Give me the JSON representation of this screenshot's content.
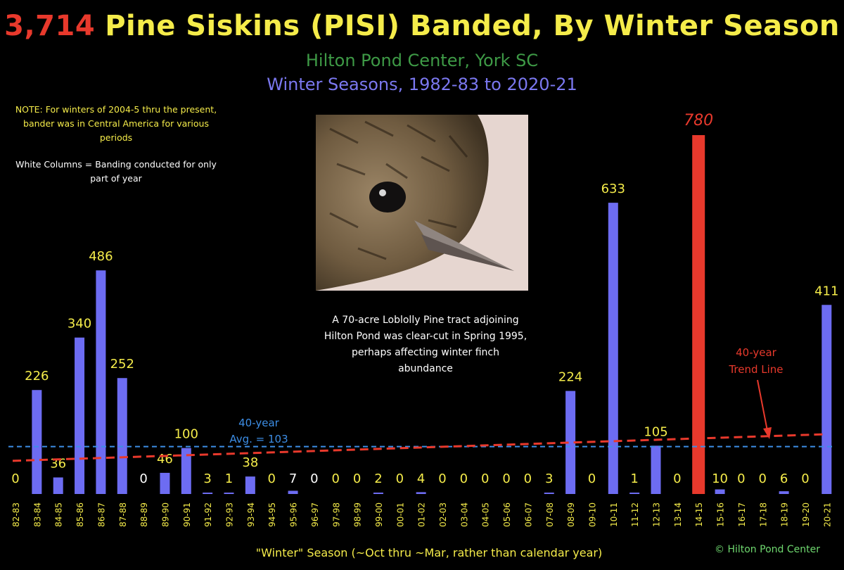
{
  "header": {
    "count": "3,714",
    "title": "Pine Siskins (PISI) Banded, By Winter Season",
    "location": "Hilton Pond Center, York SC",
    "range": "Winter Seasons, 1982-83 to 2020-21"
  },
  "notes": {
    "central_america": "NOTE: For winters of 2004-5 thru the present, bander was in Central America for various periods",
    "white_columns": "White Columns = Banding conducted for only part of year",
    "clearcut": "A 70-acre Loblolly Pine tract adjoining Hilton Pond was clear-cut in Spring 1995, perhaps affecting winter finch abundance"
  },
  "avg_label_line1": "40-year",
  "avg_label_line2": "Avg. = 103",
  "trend_label_line1": "40-year",
  "trend_label_line2": "Trend Line",
  "x_axis_label": "\"Winter\" Season (~Oct thru ~Mar, rather than calendar year)",
  "credit": "© Hilton Pond Center",
  "colors": {
    "bar": "#6d6cf2",
    "max_bar": "#e8392c",
    "value_label": "#f5ec4a",
    "partial_label": "#ffffff",
    "average_line": "#3d8ee6",
    "trend_line": "#e8392c"
  },
  "chart_data": {
    "type": "bar",
    "title": "Pine Siskins (PISI) Banded, By Winter Season",
    "xlabel": "\"Winter\" Season (~Oct thru ~Mar, rather than calendar year)",
    "ylabel": "",
    "ylim": [
      0,
      800
    ],
    "categories": [
      "82-83",
      "83-84",
      "84-85",
      "85-86",
      "86-87",
      "87-88",
      "88-89",
      "89-90",
      "90-91",
      "91-92",
      "92-93",
      "93-94",
      "94-95",
      "95-96",
      "96-97",
      "97-98",
      "98-99",
      "99-00",
      "00-01",
      "01-02",
      "02-03",
      "03-04",
      "04-05",
      "05-06",
      "06-07",
      "07-08",
      "08-09",
      "09-10",
      "10-11",
      "11-12",
      "12-13",
      "13-14",
      "14-15",
      "15-16",
      "16-17",
      "17-18",
      "18-19",
      "19-20",
      "20-21"
    ],
    "values": [
      0,
      226,
      36,
      340,
      486,
      252,
      0,
      46,
      100,
      3,
      1,
      38,
      0,
      7,
      0,
      0,
      0,
      2,
      0,
      4,
      0,
      0,
      0,
      0,
      0,
      3,
      224,
      0,
      633,
      1,
      105,
      0,
      780,
      10,
      0,
      0,
      6,
      0,
      411
    ],
    "partial_year": [
      "88-89",
      "95-96",
      "96-97"
    ],
    "max_category": "14-15",
    "average": 103,
    "trend_line": {
      "start": 72,
      "end": 130
    }
  }
}
